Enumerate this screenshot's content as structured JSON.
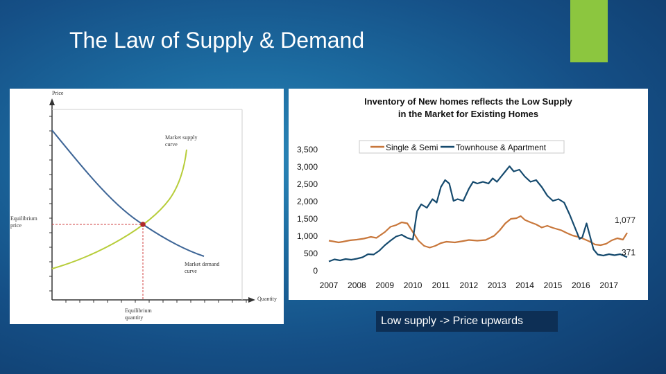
{
  "slide": {
    "title": "The Law of Supply & Demand",
    "caption": "Low supply -> Price upwards"
  },
  "colors": {
    "accent": "#8cc63f",
    "supply_curve": "#b7cd3a",
    "demand_curve": "#3d6596",
    "single_semi": "#c8773b",
    "townhouse_apartment": "#154a6e",
    "caption_bg": "#0d2f55"
  },
  "chart_data": [
    {
      "type": "line",
      "title": "",
      "xlabel": "Quantity",
      "ylabel": "Price",
      "x_tick_label": "Equilibrium quantity",
      "y_tick_label": "Equilibrium price",
      "series": [
        {
          "name": "Market supply curve",
          "label_lines": [
            "Market supply",
            "curve"
          ]
        },
        {
          "name": "Market demand curve",
          "label_lines": [
            "Market demand",
            "curve"
          ]
        }
      ],
      "annotations": [
        "Equilibrium point"
      ]
    },
    {
      "type": "line",
      "title_lines": [
        "Inventory of New homes reflects the Low Supply",
        "in the Market for Existing Homes"
      ],
      "xlabel": "",
      "ylabel": "",
      "ylim": [
        0,
        3500
      ],
      "y_ticks": [
        "0",
        "500",
        "1,000",
        "1,500",
        "2,000",
        "2,500",
        "3,000",
        "3,500"
      ],
      "categories": [
        "2007",
        "2008",
        "2009",
        "2010",
        "2011",
        "2012",
        "2013",
        "2014",
        "2015",
        "2016",
        "2017"
      ],
      "x_start": 2007.0,
      "x_end": 2017.65,
      "legend": "top-center",
      "series": [
        {
          "name": "Single & Semi",
          "end_label": "1,077",
          "points": [
            [
              2007.0,
              850
            ],
            [
              2007.15,
              830
            ],
            [
              2007.35,
              800
            ],
            [
              2007.5,
              820
            ],
            [
              2007.75,
              860
            ],
            [
              2008.0,
              880
            ],
            [
              2008.25,
              910
            ],
            [
              2008.5,
              960
            ],
            [
              2008.7,
              930
            ],
            [
              2009.0,
              1100
            ],
            [
              2009.2,
              1250
            ],
            [
              2009.4,
              1300
            ],
            [
              2009.6,
              1380
            ],
            [
              2009.8,
              1350
            ],
            [
              2010.0,
              1100
            ],
            [
              2010.2,
              850
            ],
            [
              2010.4,
              700
            ],
            [
              2010.6,
              650
            ],
            [
              2010.8,
              700
            ],
            [
              2011.0,
              780
            ],
            [
              2011.2,
              820
            ],
            [
              2011.5,
              800
            ],
            [
              2011.8,
              840
            ],
            [
              2012.0,
              870
            ],
            [
              2012.3,
              850
            ],
            [
              2012.6,
              870
            ],
            [
              2012.9,
              990
            ],
            [
              2013.1,
              1150
            ],
            [
              2013.3,
              1350
            ],
            [
              2013.5,
              1480
            ],
            [
              2013.7,
              1500
            ],
            [
              2013.85,
              1560
            ],
            [
              2014.0,
              1450
            ],
            [
              2014.2,
              1380
            ],
            [
              2014.4,
              1320
            ],
            [
              2014.6,
              1230
            ],
            [
              2014.8,
              1280
            ],
            [
              2015.0,
              1220
            ],
            [
              2015.3,
              1150
            ],
            [
              2015.5,
              1070
            ],
            [
              2015.7,
              1000
            ],
            [
              2015.9,
              960
            ],
            [
              2016.1,
              900
            ],
            [
              2016.3,
              830
            ],
            [
              2016.5,
              740
            ],
            [
              2016.7,
              720
            ],
            [
              2016.9,
              760
            ],
            [
              2017.1,
              860
            ],
            [
              2017.3,
              920
            ],
            [
              2017.5,
              880
            ],
            [
              2017.65,
              1077
            ]
          ]
        },
        {
          "name": "Townhouse & Apartment",
          "end_label": "371",
          "points": [
            [
              2007.0,
              250
            ],
            [
              2007.2,
              310
            ],
            [
              2007.4,
              280
            ],
            [
              2007.6,
              320
            ],
            [
              2007.8,
              300
            ],
            [
              2008.0,
              330
            ],
            [
              2008.2,
              370
            ],
            [
              2008.4,
              460
            ],
            [
              2008.6,
              450
            ],
            [
              2008.8,
              560
            ],
            [
              2009.0,
              720
            ],
            [
              2009.2,
              850
            ],
            [
              2009.4,
              970
            ],
            [
              2009.6,
              1020
            ],
            [
              2009.8,
              930
            ],
            [
              2010.0,
              880
            ],
            [
              2010.15,
              1700
            ],
            [
              2010.3,
              1900
            ],
            [
              2010.5,
              1800
            ],
            [
              2010.7,
              2050
            ],
            [
              2010.85,
              1950
            ],
            [
              2011.0,
              2400
            ],
            [
              2011.15,
              2600
            ],
            [
              2011.3,
              2500
            ],
            [
              2011.45,
              2000
            ],
            [
              2011.6,
              2050
            ],
            [
              2011.8,
              2000
            ],
            [
              2012.0,
              2350
            ],
            [
              2012.15,
              2550
            ],
            [
              2012.3,
              2500
            ],
            [
              2012.5,
              2550
            ],
            [
              2012.7,
              2500
            ],
            [
              2012.85,
              2650
            ],
            [
              2013.0,
              2550
            ],
            [
              2013.15,
              2700
            ],
            [
              2013.3,
              2850
            ],
            [
              2013.45,
              3000
            ],
            [
              2013.6,
              2850
            ],
            [
              2013.8,
              2900
            ],
            [
              2014.0,
              2700
            ],
            [
              2014.2,
              2550
            ],
            [
              2014.4,
              2600
            ],
            [
              2014.6,
              2400
            ],
            [
              2014.8,
              2150
            ],
            [
              2015.0,
              2000
            ],
            [
              2015.2,
              2050
            ],
            [
              2015.4,
              1950
            ],
            [
              2015.6,
              1600
            ],
            [
              2015.8,
              1200
            ],
            [
              2015.95,
              900
            ],
            [
              2016.05,
              950
            ],
            [
              2016.2,
              1350
            ],
            [
              2016.3,
              1050
            ],
            [
              2016.45,
              600
            ],
            [
              2016.6,
              450
            ],
            [
              2016.8,
              420
            ],
            [
              2017.0,
              460
            ],
            [
              2017.2,
              430
            ],
            [
              2017.4,
              460
            ],
            [
              2017.65,
              371
            ]
          ]
        }
      ]
    }
  ]
}
